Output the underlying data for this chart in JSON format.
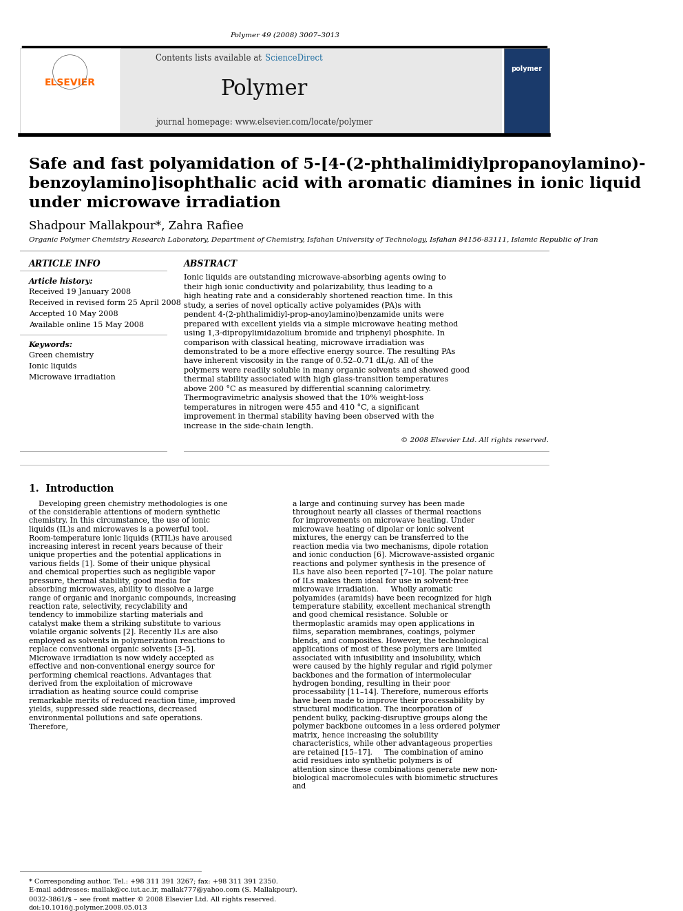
{
  "journal_ref": "Polymer 49 (2008) 3007–3013",
  "contents_text": "Contents lists available at ",
  "sciencedirect_text": "ScienceDirect",
  "journal_name": "Polymer",
  "journal_homepage": "journal homepage: www.elsevier.com/locate/polymer",
  "title_line1": "Safe and fast polyamidation of 5-[4-(2-phthalimidiylpropanoylamino)-",
  "title_line2": "benzoylamino]isophthalic acid with aromatic diamines in ionic liquid",
  "title_line3": "under microwave irradiation",
  "authors": "Shadpour Mallakpour*, Zahra Rafiee",
  "affiliation": "Organic Polymer Chemistry Research Laboratory, Department of Chemistry, Isfahan University of Technology, Isfahan 84156-83111, Islamic Republic of Iran",
  "article_info_header": "ARTICLE INFO",
  "abstract_header": "ABSTRACT",
  "article_history_label": "Article history:",
  "received": "Received 19 January 2008",
  "received_revised": "Received in revised form 25 April 2008",
  "accepted": "Accepted 10 May 2008",
  "available_online": "Available online 15 May 2008",
  "keywords_label": "Keywords:",
  "keywords": [
    "Green chemistry",
    "Ionic liquids",
    "Microwave irradiation"
  ],
  "abstract_text": "Ionic liquids are outstanding microwave-absorbing agents owing to their high ionic conductivity and polarizability, thus leading to a high heating rate and a considerably shortened reaction time. In this study, a series of novel optically active polyamides (PA)s with pendent 4-(2-phthalimidiyl-prop-anoylamino)benzamide units were prepared with excellent yields via a simple microwave heating method using 1,3-dipropylimidazolium bromide and triphenyl phosphite. In comparison with classical heating, microwave irradiation was demonstrated to be a more effective energy source. The resulting PAs have inherent viscosity in the range of 0.52–0.71 dL/g. All of the polymers were readily soluble in many organic solvents and showed good thermal stability associated with high glass-transition temperatures above 200 °C as measured by differential scanning calorimetry. Thermogravimetric analysis showed that the 10% weight-loss temperatures in nitrogen were 455 and 410 °C, a significant improvement in thermal stability having been observed with the increase in the side-chain length.",
  "copyright": "© 2008 Elsevier Ltd. All rights reserved.",
  "intro_header": "1.  Introduction",
  "intro_col1": "    Developing green chemistry methodologies is one of the considerable attentions of modern synthetic chemistry. In this circumstance, the use of ionic liquids (IL)s and microwaves is a powerful tool. Room-temperature ionic liquids (RTIL)s have aroused increasing interest in recent years because of their unique properties and the potential applications in various fields [1]. Some of their unique physical and chemical properties such as negligible vapor pressure, thermal stability, good media for absorbing microwaves, ability to dissolve a large range of organic and inorganic compounds, increasing reaction rate, selectivity, recyclability and tendency to immobilize starting materials and catalyst make them a striking substitute to various volatile organic solvents [2]. Recently ILs are also employed as solvents in polymerization reactions to replace conventional organic solvents [3–5].\n    Microwave irradiation is now widely accepted as effective and non-conventional energy source for performing chemical reactions. Advantages that derived from the exploitation of microwave irradiation as heating source could comprise remarkable merits of reduced reaction time, improved yields, suppressed side reactions, decreased environmental pollutions and safe operations. Therefore,",
  "intro_col2": "a large and continuing survey has been made throughout nearly all classes of thermal reactions for improvements on microwave heating. Under microwave heating of dipolar or ionic solvent mixtures, the energy can be transferred to the reaction media via two mechanisms, dipole rotation and ionic conduction [6]. Microwave-assisted organic reactions and polymer synthesis in the presence of ILs have also been reported [7–10]. The polar nature of ILs makes them ideal for use in solvent-free microwave irradiation.\n    Wholly aromatic polyamides (aramids) have been recognized for high temperature stability, excellent mechanical strength and good chemical resistance. Soluble or thermoplastic aramids may open applications in films, separation membranes, coatings, polymer blends, and composites. However, the technological applications of most of these polymers are limited associated with infusibility and insolubility, which were caused by the highly regular and rigid polymer backbones and the formation of intermolecular hydrogen bonding, resulting in their poor processability [11–14]. Therefore, numerous efforts have been made to improve their processability by structural modification. The incorporation of pendent bulky, packing-disruptive groups along the polymer backbone outcomes in a less ordered polymer matrix, hence increasing the solubility characteristics, while other advantageous properties are retained [15–17].\n    The combination of amino acid residues into synthetic polymers is of attention since these combinations generate new non-biological macromolecules with biomimetic structures and",
  "footnote1": "* Corresponding author. Tel.: +98 311 391 3267; fax: +98 311 391 2350.",
  "footnote2": "E-mail addresses: mallak@cc.iut.ac.ir, mallak777@yahoo.com (S. Mallakpour).",
  "footnote3": "0032-3861/$ – see front matter © 2008 Elsevier Ltd. All rights reserved.",
  "footnote4": "doi:10.1016/j.polymer.2008.05.013",
  "bg_color": "#ffffff",
  "header_bg": "#e8e8e8",
  "elsevier_orange": "#FF6600",
  "science_direct_blue": "#1a5276",
  "link_blue": "#2471A3",
  "title_color": "#000000",
  "text_color": "#000000",
  "section_header_color": "#000000"
}
